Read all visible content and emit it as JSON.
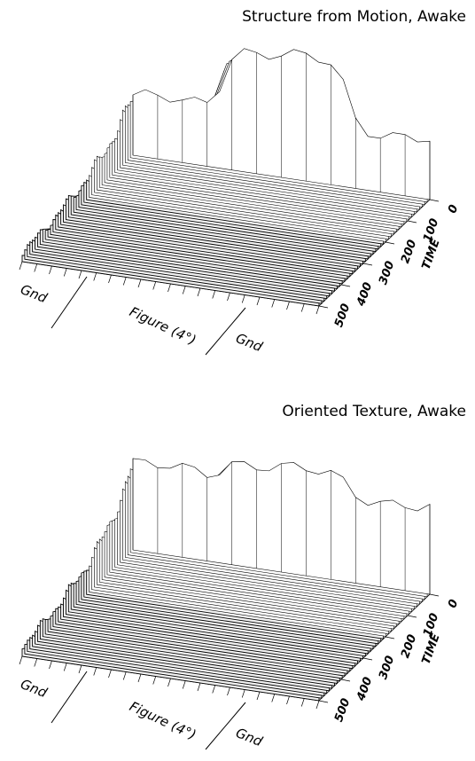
{
  "chart_data": [
    {
      "type": "surface",
      "title": "Structure from Motion, Awake",
      "ylabel": "TIME",
      "ylim": [
        0,
        500
      ],
      "yticks": [
        0,
        100,
        200,
        300,
        400,
        500
      ],
      "regions": [
        "Gnd",
        "Figure (4°)",
        "Gnd"
      ]
    },
    {
      "type": "surface",
      "title": "Oriented Texture, Awake",
      "ylabel": "TIME",
      "ylim": [
        0,
        500
      ],
      "yticks": [
        0,
        100,
        200,
        300,
        400,
        500
      ],
      "regions": [
        "Gnd",
        "Figure (4°)",
        "Gnd"
      ]
    }
  ]
}
